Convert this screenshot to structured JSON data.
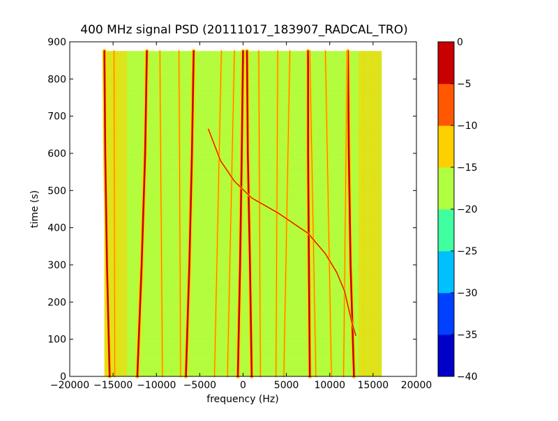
{
  "chart_data": {
    "type": "heatmap",
    "title": "400 MHz signal PSD (20111017_183907_RADCAL_TRO)",
    "xlabel": "frequency (Hz)",
    "ylabel": "time (s)",
    "xlim": [
      -20000,
      20000
    ],
    "ylim": [
      0,
      900
    ],
    "xticks": [
      -20000,
      -15000,
      -10000,
      -5000,
      0,
      5000,
      10000,
      15000,
      20000
    ],
    "yticks": [
      0,
      100,
      200,
      300,
      400,
      500,
      600,
      700,
      800,
      900
    ],
    "data_extent": {
      "x": [
        -16000,
        16000
      ],
      "y": [
        0,
        875
      ]
    },
    "background_level_band": [
      -20,
      -15
    ],
    "edge_level_band": [
      -15,
      -10
    ],
    "colorbar": {
      "levels": [
        -40,
        -35,
        -30,
        -25,
        -20,
        -15,
        -10,
        -5,
        0
      ],
      "colors": [
        "#0000c8",
        "#0040ff",
        "#00c0ff",
        "#40ffa0",
        "#b0ff40",
        "#ffd000",
        "#ff5800",
        "#c80000"
      ],
      "tick_labels": [
        "0",
        "−5",
        "−10",
        "−15",
        "−20",
        "−25",
        "−30",
        "−35",
        "−40"
      ]
    },
    "series": [
      {
        "strength": "strong",
        "points": [
          [
            -15400,
            0
          ],
          [
            -15700,
            300
          ],
          [
            -15900,
            600
          ],
          [
            -16000,
            875
          ]
        ]
      },
      {
        "strength": "strong",
        "points": [
          [
            -12200,
            0
          ],
          [
            -11700,
            300
          ],
          [
            -11300,
            600
          ],
          [
            -11100,
            875
          ]
        ]
      },
      {
        "strength": "strong",
        "points": [
          [
            -6600,
            0
          ],
          [
            -6200,
            300
          ],
          [
            -5900,
            600
          ],
          [
            -5700,
            875
          ]
        ]
      },
      {
        "strength": "strong",
        "points": [
          [
            -600,
            0
          ],
          [
            -350,
            300
          ],
          [
            -150,
            600
          ],
          [
            0,
            875
          ]
        ]
      },
      {
        "strength": "strong",
        "points": [
          [
            1000,
            0
          ],
          [
            800,
            300
          ],
          [
            550,
            600
          ],
          [
            450,
            875
          ]
        ]
      },
      {
        "strength": "strong",
        "points": [
          [
            7700,
            0
          ],
          [
            7600,
            300
          ],
          [
            7500,
            600
          ],
          [
            7500,
            875
          ]
        ]
      },
      {
        "strength": "strong",
        "points": [
          [
            12800,
            0
          ],
          [
            12400,
            300
          ],
          [
            12200,
            600
          ],
          [
            12100,
            875
          ]
        ]
      },
      {
        "strength": "weak",
        "points": [
          [
            -14800,
            0
          ],
          [
            -14900,
            875
          ]
        ]
      },
      {
        "strength": "weak",
        "points": [
          [
            -9300,
            0
          ],
          [
            -9600,
            875
          ]
        ]
      },
      {
        "strength": "weak",
        "points": [
          [
            -7200,
            0
          ],
          [
            -7400,
            875
          ]
        ]
      },
      {
        "strength": "weak",
        "points": [
          [
            -3300,
            0
          ],
          [
            -2500,
            875
          ]
        ]
      },
      {
        "strength": "weak",
        "points": [
          [
            -1800,
            0
          ],
          [
            -1000,
            875
          ]
        ]
      },
      {
        "strength": "weak",
        "points": [
          [
            2000,
            0
          ],
          [
            1800,
            875
          ]
        ]
      },
      {
        "strength": "weak",
        "points": [
          [
            3800,
            0
          ],
          [
            4000,
            875
          ]
        ]
      },
      {
        "strength": "weak",
        "points": [
          [
            4700,
            0
          ],
          [
            5400,
            875
          ]
        ]
      },
      {
        "strength": "weak",
        "points": [
          [
            8400,
            0
          ],
          [
            7700,
            875
          ]
        ]
      },
      {
        "strength": "weak",
        "points": [
          [
            10200,
            0
          ],
          [
            9500,
            875
          ]
        ]
      },
      {
        "strength": "weak",
        "points": [
          [
            11600,
            0
          ],
          [
            12000,
            875
          ]
        ]
      },
      {
        "strength": "sweep",
        "points": [
          [
            -4000,
            665
          ],
          [
            -2600,
            580
          ],
          [
            -1000,
            525
          ],
          [
            1000,
            480
          ],
          [
            4000,
            440
          ],
          [
            7500,
            385
          ],
          [
            9500,
            330
          ],
          [
            10800,
            280
          ],
          [
            11700,
            230
          ],
          [
            12500,
            150
          ],
          [
            13000,
            110
          ]
        ]
      }
    ]
  }
}
